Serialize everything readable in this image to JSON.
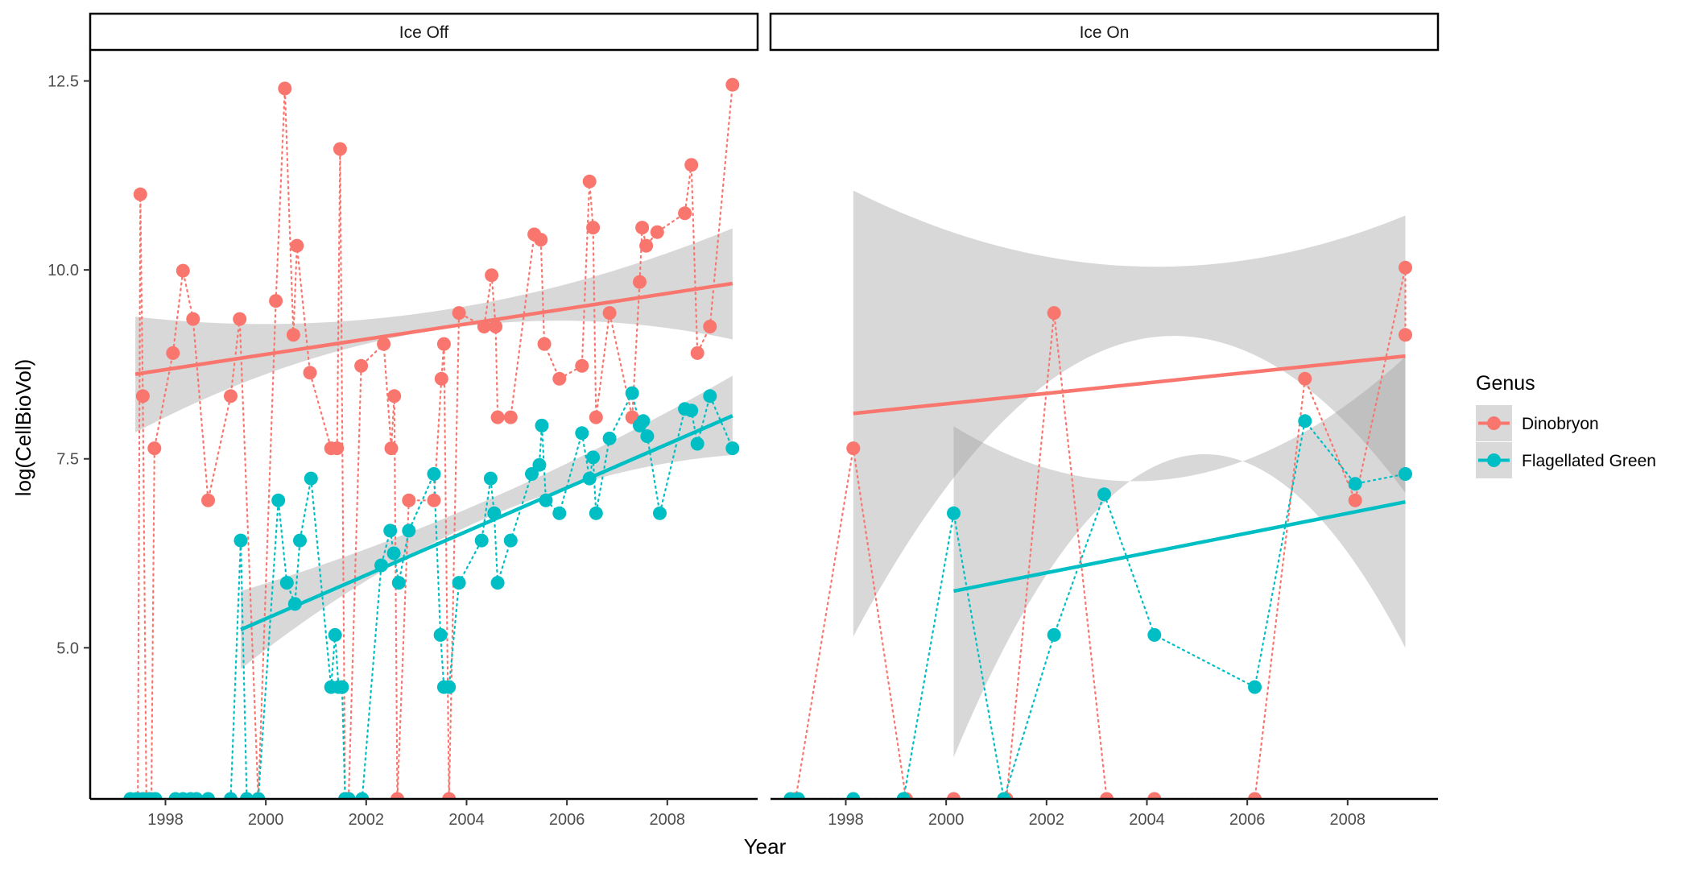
{
  "chart_data": {
    "type": "scatter",
    "xlabel": "Year",
    "ylabel": "log(CellBioVol)",
    "xlim": [
      1996.5,
      2009.8
    ],
    "ylim": [
      3.0,
      12.9
    ],
    "x_ticks": [
      1998,
      2000,
      2002,
      2004,
      2006,
      2008
    ],
    "x_tick_labels": [
      "1998",
      "2000",
      "2002",
      "2004",
      "2006",
      "2008"
    ],
    "y_ticks": [
      5.0,
      7.5,
      10.0,
      12.5
    ],
    "y_tick_labels": [
      "5.0",
      "7.5",
      "10.0",
      "12.5"
    ],
    "grid": false,
    "legend": {
      "title": "Genus",
      "placement": "right",
      "entries": [
        "Dinobryon",
        "Flagellated Green"
      ]
    },
    "colors": {
      "Dinobryon": "#F8766D",
      "Flagellated Green": "#00BFC4",
      "ribbon": "#999999"
    },
    "facets": [
      {
        "label": "Ice Off",
        "series": [
          {
            "name": "Dinobryon",
            "points": [
              [
                1997.45,
                3.0
              ],
              [
                1997.5,
                11.0
              ],
              [
                1997.55,
                8.33
              ],
              [
                1997.62,
                3.0
              ],
              [
                1997.72,
                3.0
              ],
              [
                1997.78,
                7.64
              ],
              [
                1998.15,
                8.9
              ],
              [
                1998.35,
                9.99
              ],
              [
                1998.55,
                9.35
              ],
              [
                1998.85,
                6.95
              ],
              [
                1999.3,
                8.33
              ],
              [
                1999.48,
                9.35
              ],
              [
                1999.85,
                3.0
              ],
              [
                2000.2,
                9.59
              ],
              [
                2000.38,
                12.4
              ],
              [
                2000.55,
                9.14
              ],
              [
                2000.62,
                10.32
              ],
              [
                2000.88,
                8.64
              ],
              [
                2001.3,
                7.64
              ],
              [
                2001.42,
                7.64
              ],
              [
                2001.48,
                11.6
              ],
              [
                2001.58,
                3.0
              ],
              [
                2001.65,
                3.0
              ],
              [
                2001.9,
                8.73
              ],
              [
                2002.35,
                9.02
              ],
              [
                2002.5,
                7.64
              ],
              [
                2002.56,
                8.33
              ],
              [
                2002.62,
                3.0
              ],
              [
                2002.85,
                6.95
              ],
              [
                2003.35,
                6.95
              ],
              [
                2003.5,
                8.56
              ],
              [
                2003.55,
                9.02
              ],
              [
                2003.65,
                3.0
              ],
              [
                2003.85,
                9.43
              ],
              [
                2004.35,
                9.25
              ],
              [
                2004.5,
                9.93
              ],
              [
                2004.58,
                9.25
              ],
              [
                2004.62,
                8.05
              ],
              [
                2004.88,
                8.05
              ],
              [
                2005.35,
                10.47
              ],
              [
                2005.48,
                10.4
              ],
              [
                2005.55,
                9.02
              ],
              [
                2005.85,
                8.56
              ],
              [
                2006.3,
                8.73
              ],
              [
                2006.45,
                11.17
              ],
              [
                2006.52,
                10.56
              ],
              [
                2006.58,
                8.05
              ],
              [
                2006.85,
                9.43
              ],
              [
                2007.3,
                8.05
              ],
              [
                2007.45,
                9.84
              ],
              [
                2007.5,
                10.56
              ],
              [
                2007.58,
                10.32
              ],
              [
                2007.8,
                10.5
              ],
              [
                2008.35,
                10.75
              ],
              [
                2008.48,
                11.39
              ],
              [
                2008.6,
                8.9
              ],
              [
                2008.85,
                9.25
              ],
              [
                2009.3,
                12.45
              ]
            ]
          },
          {
            "name": "Flagellated Green",
            "points": [
              [
                1997.3,
                3.0
              ],
              [
                1997.42,
                3.0
              ],
              [
                1997.55,
                3.0
              ],
              [
                1997.68,
                3.0
              ],
              [
                1997.8,
                3.0
              ],
              [
                1998.2,
                3.0
              ],
              [
                1998.35,
                3.0
              ],
              [
                1998.5,
                3.0
              ],
              [
                1998.62,
                3.0
              ],
              [
                1998.85,
                3.0
              ],
              [
                1999.3,
                3.0
              ],
              [
                1999.5,
                6.42
              ],
              [
                1999.62,
                3.0
              ],
              [
                1999.85,
                3.0
              ],
              [
                2000.25,
                6.95
              ],
              [
                2000.42,
                5.86
              ],
              [
                2000.58,
                5.58
              ],
              [
                2000.68,
                6.42
              ],
              [
                2000.9,
                7.24
              ],
              [
                2001.3,
                4.48
              ],
              [
                2001.38,
                5.17
              ],
              [
                2001.45,
                4.48
              ],
              [
                2001.52,
                4.48
              ],
              [
                2001.58,
                3.0
              ],
              [
                2001.65,
                3.0
              ],
              [
                2001.92,
                3.0
              ],
              [
                2002.3,
                6.09
              ],
              [
                2002.48,
                6.55
              ],
              [
                2002.55,
                6.25
              ],
              [
                2002.65,
                5.86
              ],
              [
                2002.85,
                6.55
              ],
              [
                2003.35,
                7.3
              ],
              [
                2003.48,
                5.17
              ],
              [
                2003.55,
                4.48
              ],
              [
                2003.65,
                4.48
              ],
              [
                2003.85,
                5.86
              ],
              [
                2004.3,
                6.42
              ],
              [
                2004.48,
                7.24
              ],
              [
                2004.55,
                6.78
              ],
              [
                2004.62,
                5.86
              ],
              [
                2004.88,
                6.42
              ],
              [
                2005.3,
                7.3
              ],
              [
                2005.45,
                7.42
              ],
              [
                2005.5,
                7.94
              ],
              [
                2005.58,
                6.95
              ],
              [
                2005.85,
                6.78
              ],
              [
                2006.3,
                7.84
              ],
              [
                2006.45,
                7.24
              ],
              [
                2006.52,
                7.52
              ],
              [
                2006.58,
                6.78
              ],
              [
                2006.85,
                7.77
              ],
              [
                2007.3,
                8.37
              ],
              [
                2007.45,
                7.94
              ],
              [
                2007.52,
                8.0
              ],
              [
                2007.6,
                7.8
              ],
              [
                2007.85,
                6.78
              ],
              [
                2008.35,
                8.16
              ],
              [
                2008.48,
                8.14
              ],
              [
                2008.6,
                7.7
              ],
              [
                2008.85,
                8.33
              ],
              [
                2009.3,
                7.64
              ]
            ]
          }
        ],
        "fits": [
          {
            "name": "Dinobryon",
            "x": [
              1997.4,
              2009.3
            ],
            "y": [
              8.62,
              9.82
            ],
            "ci_lower": [
              7.85,
              9.08
            ],
            "ci_mid": [
              9.2,
              9.45
            ],
            "ci_upper": [
              9.38,
              10.55
            ]
          },
          {
            "name": "Flagellated Green",
            "x": [
              1999.5,
              2009.3
            ],
            "y": [
              5.24,
              8.07
            ],
            "ci_lower": [
              4.72,
              7.55
            ],
            "ci_mid": [
              6.72,
              6.95
            ],
            "ci_upper": [
              5.75,
              8.6
            ]
          }
        ]
      },
      {
        "label": "Ice On",
        "series": [
          {
            "name": "Dinobryon",
            "points": [
              [
                1997.0,
                3.0
              ],
              [
                1998.15,
                7.64
              ],
              [
                1999.2,
                3.0
              ],
              [
                2000.15,
                3.0
              ],
              [
                2001.2,
                3.0
              ],
              [
                2002.15,
                9.43
              ],
              [
                2003.2,
                3.0
              ],
              [
                2004.15,
                3.0
              ],
              [
                2006.15,
                3.0
              ],
              [
                2007.15,
                8.56
              ],
              [
                2008.15,
                6.95
              ],
              [
                2009.15,
                10.03
              ],
              [
                2009.15,
                9.14
              ]
            ]
          },
          {
            "name": "Flagellated Green",
            "points": [
              [
                1996.9,
                3.0
              ],
              [
                1997.05,
                3.0
              ],
              [
                1998.15,
                3.0
              ],
              [
                1999.15,
                3.0
              ],
              [
                2000.15,
                6.78
              ],
              [
                2001.15,
                3.0
              ],
              [
                2002.15,
                5.17
              ],
              [
                2003.15,
                7.03
              ],
              [
                2004.15,
                5.17
              ],
              [
                2006.15,
                4.48
              ],
              [
                2007.15,
                8.0
              ],
              [
                2008.15,
                7.17
              ],
              [
                2009.15,
                7.3
              ]
            ]
          }
        ],
        "fits": [
          {
            "name": "Dinobryon",
            "x": [
              1998.15,
              2009.15
            ],
            "y": [
              8.1,
              8.86
            ],
            "ci_lower": [
              5.15,
              7.05
            ],
            "ci_mid": [
              9.05,
              10.05
            ],
            "ci_upper": [
              11.05,
              10.72
            ]
          },
          {
            "name": "Flagellated Green",
            "x": [
              2000.15,
              2009.15
            ],
            "y": [
              5.75,
              6.93
            ],
            "ci_lower": [
              3.55,
              5.0
            ],
            "ci_mid": [
              7.52,
              7.25
            ],
            "ci_upper": [
              7.93,
              8.85
            ]
          }
        ]
      }
    ]
  }
}
